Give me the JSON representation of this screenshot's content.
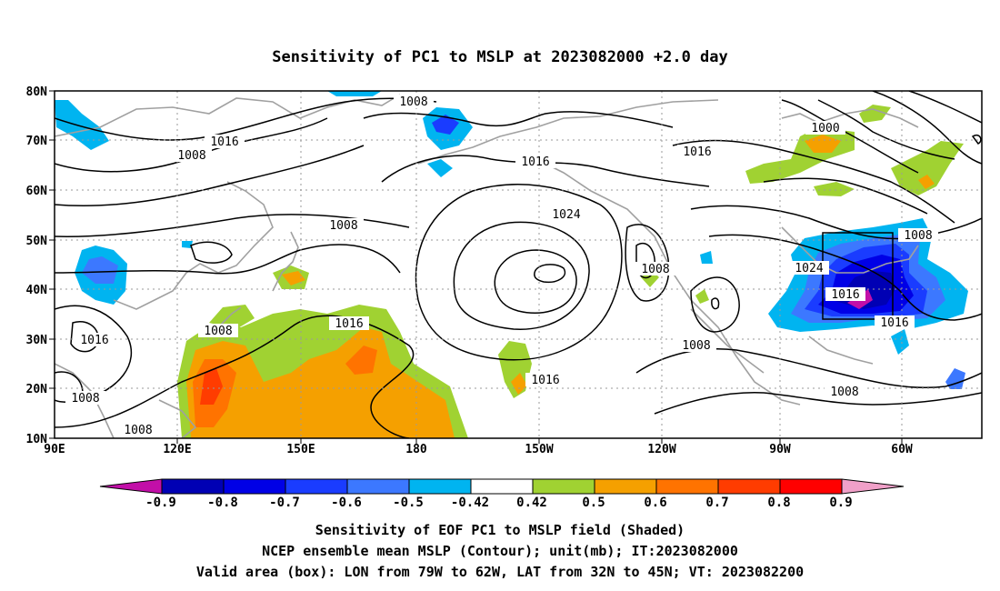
{
  "title": "Sensitivity of PC1 to MSLP at 2023082000 +2.0 day",
  "lat_labels": [
    "80N",
    "70N",
    "60N",
    "50N",
    "40N",
    "30N",
    "20N",
    "10N"
  ],
  "lon_labels": [
    "90E",
    "120E",
    "150E",
    "180",
    "150W",
    "120W",
    "90W",
    "60W"
  ],
  "contour_labels": [
    {
      "text": "1008"
    },
    {
      "text": "1016"
    },
    {
      "text": "1008"
    },
    {
      "text": "1016"
    },
    {
      "text": "1024"
    },
    {
      "text": "1008"
    },
    {
      "text": "1016"
    },
    {
      "text": "1000"
    },
    {
      "text": "1008"
    },
    {
      "text": "1024"
    },
    {
      "text": "1016"
    },
    {
      "text": "1016"
    },
    {
      "text": "1008"
    },
    {
      "text": "1008"
    },
    {
      "text": "1016"
    },
    {
      "text": "1008"
    },
    {
      "text": "1008"
    },
    {
      "text": "1008"
    },
    {
      "text": "1016"
    },
    {
      "text": "1008"
    }
  ],
  "colorbar": {
    "labels": [
      "-0.9",
      "-0.8",
      "-0.7",
      "-0.6",
      "-0.5",
      "-0.42",
      "0.42",
      "0.5",
      "0.6",
      "0.7",
      "0.8",
      "0.9"
    ],
    "colors": [
      "#c20fa8",
      "#0000b4",
      "#0000e6",
      "#1a3cff",
      "#3c78ff",
      "#00b4f0",
      "#ffffff",
      "#a0d232",
      "#f5a000",
      "#ff7300",
      "#ff3c00",
      "#ff0000",
      "#f0a0c8"
    ]
  },
  "caption": [
    "Sensitivity of EOF PC1 to MSLP field (Shaded)",
    "NCEP ensemble mean MSLP (Contour); unit(mb); IT:2023082000",
    "Valid area (box): LON from 79W to 62W, LAT from 32N to 45N; VT: 2023082200"
  ]
}
